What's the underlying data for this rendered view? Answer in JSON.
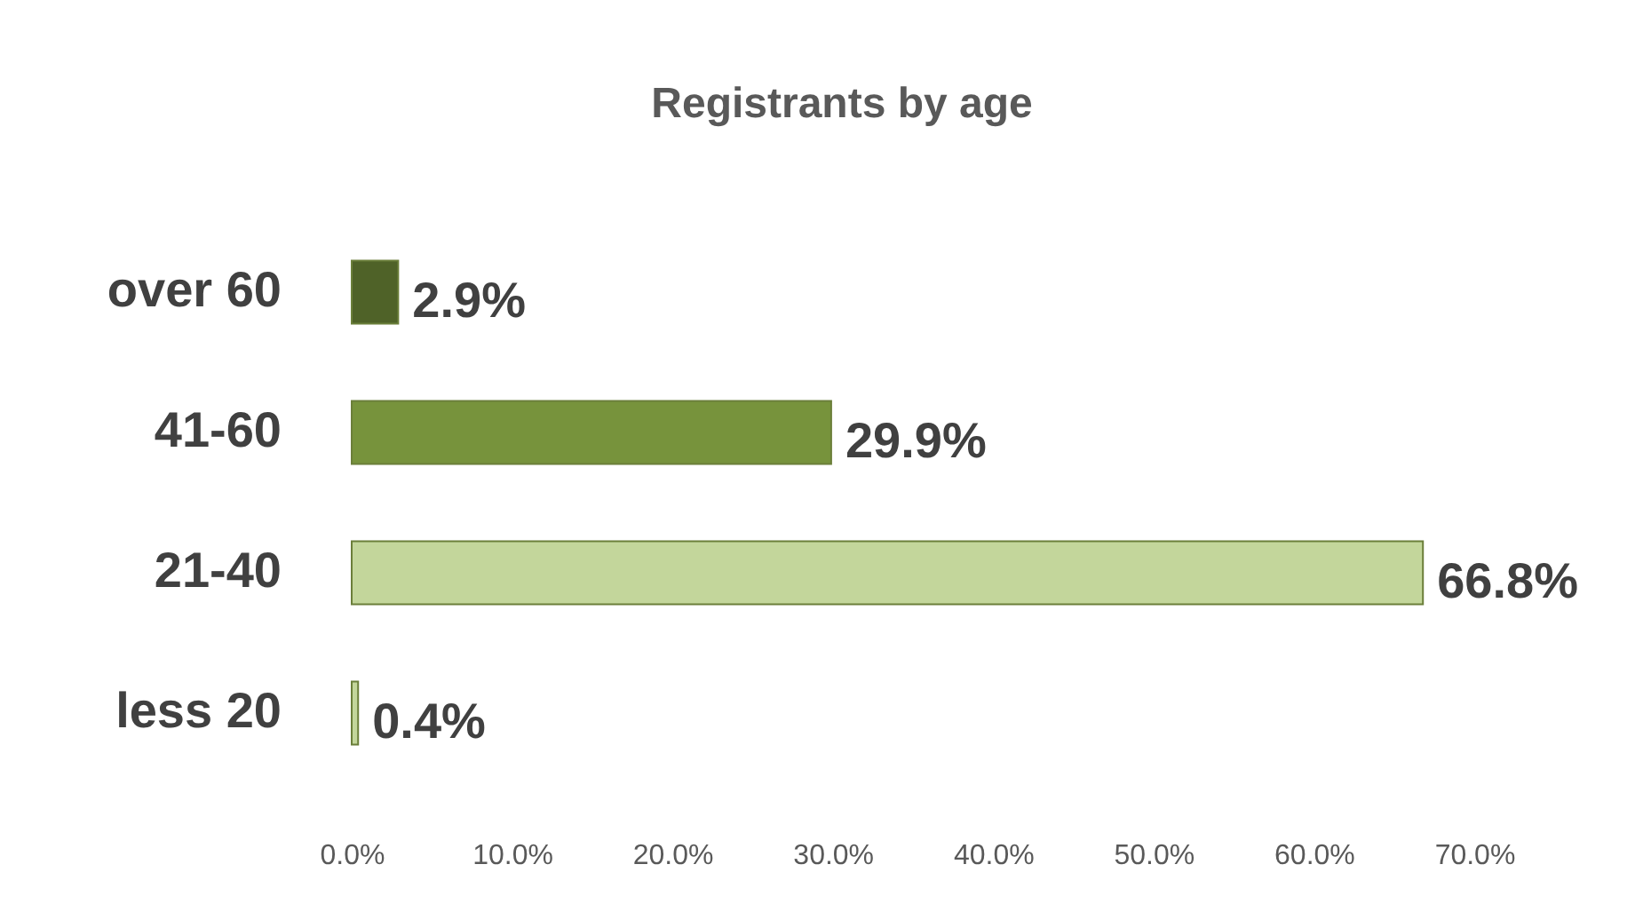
{
  "chart_data": {
    "type": "bar",
    "orientation": "horizontal",
    "title": "Registrants by age",
    "categories": [
      "over 60",
      "41-60",
      "21-40",
      "less 20"
    ],
    "values": [
      2.9,
      29.9,
      66.8,
      0.4
    ],
    "colors": [
      "#4f6228",
      "#77933c",
      "#c3d69b",
      "#c3d69b"
    ],
    "value_labels": [
      "2.9%",
      "29.9%",
      "66.8%",
      "0.4%"
    ],
    "xlim": [
      0,
      70
    ],
    "xticks": [
      {
        "value": 0,
        "label": "0.0%"
      },
      {
        "value": 10,
        "label": "10.0%"
      },
      {
        "value": 20,
        "label": "20.0%"
      },
      {
        "value": 30,
        "label": "30.0%"
      },
      {
        "value": 40,
        "label": "40.0%"
      },
      {
        "value": 50,
        "label": "50.0%"
      },
      {
        "value": 60,
        "label": "60.0%"
      },
      {
        "value": 70,
        "label": "70.0%"
      }
    ],
    "grid": false
  }
}
